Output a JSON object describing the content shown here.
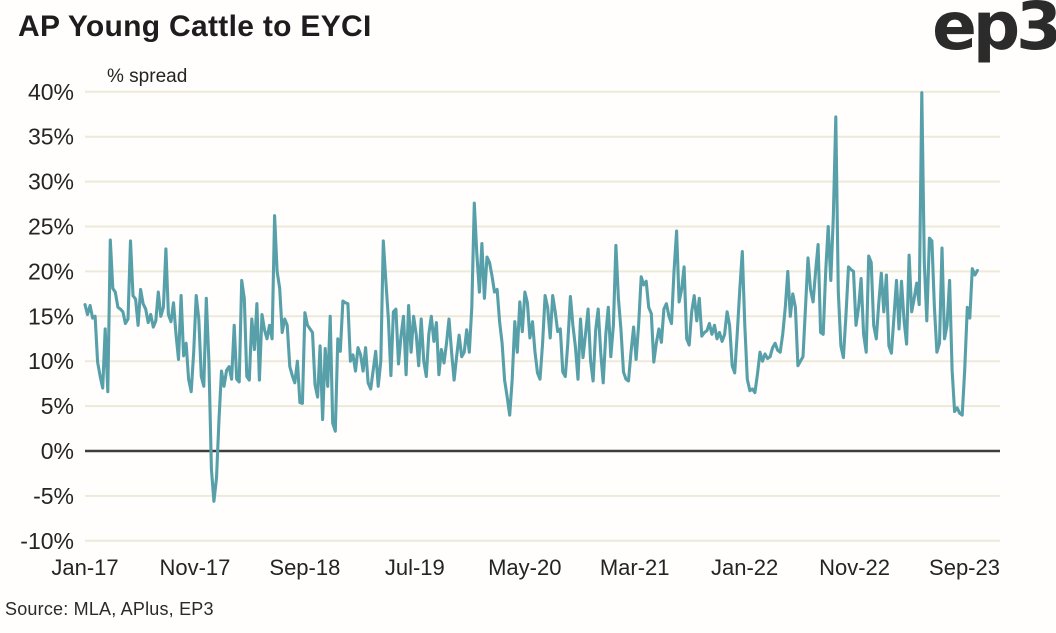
{
  "header": {
    "title": "AP Young Cattle to EYCI",
    "logo": "ep3"
  },
  "footer": {
    "source": "Source: MLA, APlus, EP3"
  },
  "colors": {
    "line": "#58a0a9",
    "grid": "#edead9",
    "zero_axis": "#3d3d3d",
    "text": "#242424",
    "background": "#fffefc"
  },
  "chart_data": {
    "type": "line",
    "title": "AP Young Cattle to EYCI",
    "ylabel": "% spread",
    "xlabel": "",
    "frequency": "weekly",
    "x_start": "Jan-2017",
    "x_end": "Oct-2023",
    "ylim": [
      -10,
      40
    ],
    "grid": "horizontal",
    "legend": "none",
    "y_tick_labels": [
      "40%",
      "35%",
      "30%",
      "25%",
      "20%",
      "15%",
      "10%",
      "5%",
      "0%",
      "-5%",
      "-10%"
    ],
    "x_tick_labels": [
      "Jan-17",
      "Nov-17",
      "Sep-18",
      "Jul-19",
      "May-20",
      "Mar-21",
      "Jan-22",
      "Nov-22",
      "Sep-23"
    ],
    "values": [
      16.3,
      15.2,
      16.2,
      14.8,
      15.0,
      9.9,
      8.3,
      7.0,
      13.6,
      6.6,
      23.5,
      18.1,
      17.7,
      16.0,
      15.8,
      15.5,
      14.2,
      14.7,
      23.4,
      17.3,
      16.9,
      14.0,
      18.0,
      16.4,
      15.8,
      14.3,
      15.2,
      13.8,
      14.5,
      17.7,
      15.0,
      16.0,
      22.5,
      15.2,
      14.4,
      16.5,
      13.0,
      10.2,
      17.3,
      10.6,
      12.0,
      8.0,
      6.6,
      11.0,
      17.3,
      14.7,
      8.3,
      7.2,
      17.0,
      10.0,
      -2.0,
      -5.6,
      -3.0,
      3.5,
      8.9,
      7.2,
      9.0,
      9.4,
      8.0,
      14.0,
      8.0,
      7.7,
      19.0,
      17.0,
      8.3,
      7.9,
      14.7,
      11.3,
      16.4,
      7.9,
      15.2,
      13.5,
      12.5,
      14.0,
      12.5,
      26.2,
      20.0,
      18.1,
      13.2,
      14.7,
      14.0,
      9.4,
      8.4,
      7.6,
      10.0,
      5.4,
      5.3,
      15.4,
      14.0,
      13.6,
      13.2,
      7.4,
      6.0,
      11.7,
      3.5,
      11.4,
      7.2,
      15.0,
      3.1,
      2.2,
      12.5,
      11.1,
      16.7,
      16.5,
      16.4,
      10.0,
      10.7,
      8.9,
      11.5,
      10.7,
      8.9,
      11.5,
      7.6,
      6.9,
      9.0,
      11.1,
      7.2,
      10.0,
      23.4,
      19.0,
      14.7,
      8.4,
      15.5,
      15.8,
      9.7,
      12.8,
      15.0,
      8.5,
      16.2,
      11.0,
      15.0,
      13.0,
      9.5,
      14.7,
      10.0,
      8.3,
      13.0,
      15.0,
      12.2,
      14.3,
      8.5,
      11.3,
      9.8,
      12.0,
      14.7,
      11.0,
      7.9,
      10.5,
      12.9,
      10.5,
      11.0,
      13.5,
      11.0,
      16.0,
      27.6,
      22.0,
      17.7,
      23.1,
      17.0,
      21.6,
      21.0,
      19.5,
      17.7,
      18.0,
      14.4,
      12.0,
      7.9,
      6.0,
      4.0,
      8.0,
      14.4,
      11.0,
      16.6,
      13.3,
      17.7,
      16.5,
      12.6,
      14.4,
      11.0,
      8.7,
      8.0,
      12.0,
      17.3,
      16.0,
      12.6,
      17.3,
      15.5,
      13.3,
      13.6,
      8.8,
      8.3,
      12.0,
      17.2,
      14.0,
      11.6,
      8.0,
      14.7,
      10.4,
      13.0,
      15.8,
      10.0,
      7.8,
      13.5,
      15.8,
      11.0,
      7.6,
      13.0,
      16.0,
      10.5,
      14.0,
      22.9,
      17.0,
      13.6,
      8.8,
      8.0,
      7.8,
      11.0,
      13.8,
      10.2,
      14.0,
      19.4,
      18.5,
      18.9,
      16.0,
      15.3,
      9.9,
      12.0,
      13.6,
      12.1,
      15.8,
      16.4,
      15.0,
      14.2,
      20.0,
      24.5,
      16.6,
      18.0,
      20.5,
      12.5,
      11.8,
      15.5,
      17.3,
      14.5,
      17.0,
      12.8,
      13.2,
      13.4,
      14.2,
      13.0,
      14.0,
      12.5,
      13.2,
      12.2,
      13.0,
      15.5,
      14.0,
      9.5,
      8.7,
      13.0,
      18.0,
      22.2,
      14.0,
      8.0,
      6.7,
      6.9,
      6.5,
      8.5,
      11.0,
      10.0,
      10.8,
      10.3,
      10.5,
      11.5,
      12.0,
      11.2,
      11.0,
      13.0,
      16.0,
      20.0,
      15.0,
      17.5,
      16.0,
      9.5,
      10.0,
      10.5,
      16.0,
      21.5,
      18.0,
      16.6,
      20.0,
      23.0,
      13.2,
      13.0,
      20.0,
      25.0,
      19.0,
      26.0,
      37.2,
      17.7,
      11.7,
      10.4,
      15.0,
      20.5,
      20.2,
      20.0,
      14.0,
      16.0,
      19.2,
      13.0,
      11.0,
      21.7,
      21.0,
      14.0,
      12.5,
      16.5,
      19.8,
      15.5,
      19.6,
      11.7,
      10.9,
      15.0,
      19.0,
      13.6,
      18.9,
      14.5,
      11.9,
      21.8,
      15.5,
      17.0,
      18.7,
      16.3,
      39.9,
      21.0,
      14.5,
      23.7,
      23.4,
      16.0,
      11.0,
      12.0,
      22.6,
      12.5,
      14.0,
      19.0,
      9.0,
      4.4,
      4.8,
      4.2,
      4.0,
      9.0,
      16.0,
      14.8,
      20.3,
      19.6,
      20.1
    ]
  }
}
